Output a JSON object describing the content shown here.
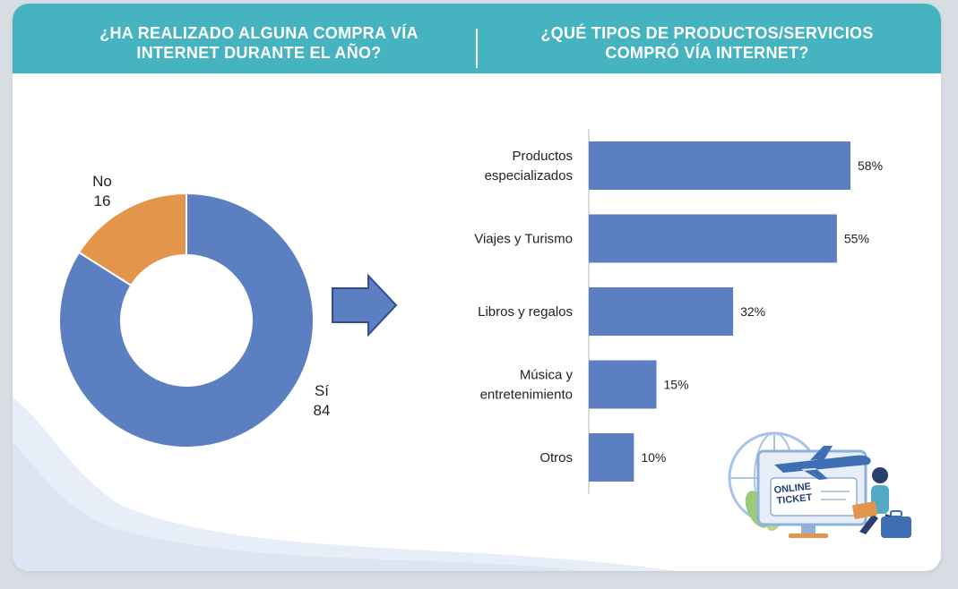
{
  "header": {
    "left_title_line1": "¿HA REALIZADO ALGUNA COMPRA VÍA",
    "left_title_line2": "INTERNET DURANTE EL AÑO?",
    "right_title_line1": "¿QUÉ TIPOS DE PRODUCTOS/SERVICIOS",
    "right_title_line2": "COMPRÓ VÍA INTERNET?"
  },
  "illustration": {
    "ticket_line1": "ONLINE",
    "ticket_line2": "TICKET"
  },
  "colors": {
    "header": "#45b3c0",
    "bar": "#5b7fc1",
    "donut_si": "#5b7fc1",
    "donut_no": "#e3954c",
    "arrow": "#5b7fc1"
  },
  "chart_data": [
    {
      "type": "pie",
      "variant": "donut",
      "categories": [
        "Sí",
        "No"
      ],
      "values": [
        84,
        16
      ]
    },
    {
      "type": "bar",
      "orientation": "horizontal",
      "categories": [
        "Productos especializados",
        "Viajes y Turismo",
        "Libros y regalos",
        "Música y entretenimiento",
        "Otros"
      ],
      "category_lines": [
        [
          "Productos",
          "especializados"
        ],
        [
          "Viajes y Turismo"
        ],
        [
          "Libros y regalos"
        ],
        [
          "Música y",
          "entretenimiento"
        ],
        [
          "Otros"
        ]
      ],
      "values": [
        58,
        55,
        32,
        15,
        10
      ],
      "value_labels": [
        "58%",
        "55%",
        "32%",
        "15%",
        "10%"
      ],
      "unit": "%"
    }
  ]
}
